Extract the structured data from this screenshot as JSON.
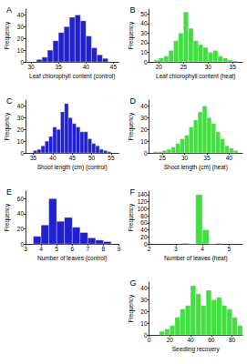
{
  "chart_data": [
    {
      "type": "histogram",
      "title": "A",
      "x_label": "Leaf chlorophyll content (control)",
      "y_label": "Frequency",
      "bins": [
        31,
        32,
        33,
        34,
        35,
        36,
        37,
        38,
        39,
        40,
        41,
        42,
        43,
        44
      ],
      "counts": [
        2,
        4,
        10,
        18,
        25,
        30,
        38,
        40,
        35,
        22,
        12,
        6,
        3
      ],
      "color": "#2020d0",
      "xlim": [
        29,
        46
      ],
      "xticks": [
        30,
        35,
        40,
        45
      ],
      "ylim": [
        0,
        45
      ],
      "yticks": [
        0,
        10,
        20,
        30,
        40
      ],
      "grid": false
    },
    {
      "type": "histogram",
      "title": "B",
      "x_label": "Leaf chlorophyll content (heat)",
      "y_label": "Frequency",
      "bins": [
        19,
        20,
        21,
        22,
        23,
        24,
        25,
        26,
        27,
        28,
        29,
        30,
        31,
        32,
        33,
        34,
        35,
        36
      ],
      "counts": [
        2,
        4,
        6,
        12,
        22,
        30,
        52,
        35,
        22,
        18,
        15,
        10,
        12,
        6,
        4,
        2,
        1
      ],
      "color": "#40e040",
      "xlim": [
        18,
        37
      ],
      "xticks": [
        20,
        25,
        30,
        35
      ],
      "ylim": [
        0,
        55
      ],
      "yticks": [
        0,
        10,
        20,
        30,
        40,
        50
      ],
      "grid": false
    },
    {
      "type": "histogram",
      "title": "C",
      "x_label": "Shoot length (cm) (control)",
      "y_label": "Frequency",
      "bins": [
        35,
        36,
        37,
        38,
        39,
        40,
        41,
        42,
        43,
        44,
        45,
        46,
        47,
        48,
        49,
        50,
        51,
        52,
        53,
        54,
        55
      ],
      "counts": [
        2,
        3,
        6,
        10,
        14,
        22,
        20,
        35,
        42,
        30,
        25,
        22,
        18,
        18,
        12,
        8,
        6,
        3,
        2,
        1
      ],
      "color": "#2020d0",
      "xlim": [
        33,
        57
      ],
      "xticks": [
        35,
        40,
        45,
        50,
        55
      ],
      "ylim": [
        0,
        45
      ],
      "yticks": [
        0,
        10,
        20,
        30,
        40
      ],
      "grid": false
    },
    {
      "type": "histogram",
      "title": "D",
      "x_label": "Shoot length (cm) (heat)",
      "y_label": "Frequency",
      "bins": [
        23,
        24,
        25,
        26,
        27,
        28,
        29,
        30,
        31,
        32,
        33,
        34,
        35,
        36,
        37,
        38,
        39,
        40,
        41,
        42
      ],
      "counts": [
        1,
        1,
        2,
        3,
        5,
        8,
        12,
        15,
        22,
        28,
        35,
        40,
        30,
        25,
        18,
        12,
        6,
        4,
        2
      ],
      "color": "#40e040",
      "xlim": [
        22,
        43
      ],
      "xticks": [
        25,
        30,
        35,
        40
      ],
      "ylim": [
        0,
        45
      ],
      "yticks": [
        0,
        10,
        20,
        30,
        40
      ],
      "grid": false
    },
    {
      "type": "histogram",
      "title": "E",
      "x_label": "Number of leaves (control)",
      "y_label": "Frequency",
      "bins": [
        3.5,
        4,
        4.5,
        5,
        5.5,
        6,
        6.5,
        7,
        7.5,
        8,
        8.5
      ],
      "counts": [
        10,
        25,
        60,
        30,
        35,
        22,
        15,
        8,
        5,
        3
      ],
      "color": "#2020d0",
      "xlim": [
        3,
        9
      ],
      "xticks": [
        3,
        4,
        5,
        6,
        7,
        8,
        9
      ],
      "ylim": [
        0,
        70
      ],
      "yticks": [
        0,
        20,
        40,
        60
      ],
      "grid": false
    },
    {
      "type": "histogram",
      "title": "F",
      "x_label": "Number of leaves (heat)",
      "y_label": "Frequency",
      "bins": [
        3.25,
        3.5,
        3.75,
        4,
        4.25,
        4.5,
        4.75
      ],
      "counts": [
        2,
        0,
        140,
        40,
        0,
        2
      ],
      "color": "#40e040",
      "xlim": [
        2,
        5.5
      ],
      "xticks": [
        2,
        3,
        4,
        5
      ],
      "ylim": [
        0,
        150
      ],
      "yticks": [
        0,
        20,
        40,
        60,
        80,
        100,
        120,
        140
      ],
      "grid": false
    },
    {
      "type": "histogram",
      "title": "G",
      "x_label": "Seedling recovery",
      "y_label": "Frequency",
      "bins": [
        10,
        15,
        20,
        25,
        30,
        35,
        40,
        45,
        50,
        55,
        60,
        65,
        70,
        75,
        80,
        85,
        90
      ],
      "counts": [
        3,
        5,
        8,
        15,
        22,
        25,
        42,
        35,
        25,
        38,
        30,
        32,
        25,
        22,
        15,
        8
      ],
      "color": "#40e040",
      "xlim": [
        0,
        90
      ],
      "xticks": [
        0,
        20,
        40,
        60,
        80
      ],
      "ylim": [
        0,
        45
      ],
      "yticks": [
        0,
        10,
        20,
        30,
        40
      ],
      "grid": false
    }
  ]
}
